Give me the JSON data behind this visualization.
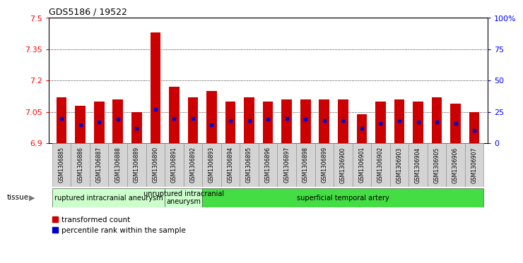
{
  "title": "GDS5186 / 19522",
  "samples": [
    "GSM1306885",
    "GSM1306886",
    "GSM1306887",
    "GSM1306888",
    "GSM1306889",
    "GSM1306890",
    "GSM1306891",
    "GSM1306892",
    "GSM1306893",
    "GSM1306894",
    "GSM1306895",
    "GSM1306896",
    "GSM1306897",
    "GSM1306898",
    "GSM1306899",
    "GSM1306900",
    "GSM1306901",
    "GSM1306902",
    "GSM1306903",
    "GSM1306904",
    "GSM1306905",
    "GSM1306906",
    "GSM1306907"
  ],
  "bar_values": [
    7.12,
    7.08,
    7.1,
    7.11,
    7.05,
    7.43,
    7.17,
    7.12,
    7.15,
    7.1,
    7.12,
    7.1,
    7.11,
    7.11,
    7.11,
    7.11,
    7.04,
    7.1,
    7.11,
    7.1,
    7.12,
    7.09,
    7.05
  ],
  "percentile_values": [
    20,
    15,
    17,
    19,
    12,
    27,
    20,
    20,
    15,
    18,
    18,
    19,
    20,
    19,
    18,
    18,
    12,
    16,
    18,
    17,
    17,
    16,
    10
  ],
  "ymin": 6.9,
  "ymax": 7.5,
  "yticks_left": [
    6.9,
    7.05,
    7.2,
    7.35,
    7.5
  ],
  "yticks_right_vals": [
    0,
    25,
    50,
    75,
    100
  ],
  "yticks_right_labels": [
    "0",
    "25",
    "50",
    "75",
    "100%"
  ],
  "bar_color": "#cc0000",
  "dot_color": "#0000cc",
  "group_bounds": [
    {
      "start": 0,
      "end": 5,
      "label": "ruptured intracranial aneurysm",
      "color": "#ccffcc"
    },
    {
      "start": 6,
      "end": 7,
      "label": "unruptured intracranial\naneurysm",
      "color": "#ccffcc"
    },
    {
      "start": 8,
      "end": 22,
      "label": "superficial temporal artery",
      "color": "#44dd44"
    }
  ],
  "tissue_label": "tissue",
  "legend1": "transformed count",
  "legend2": "percentile rank within the sample"
}
